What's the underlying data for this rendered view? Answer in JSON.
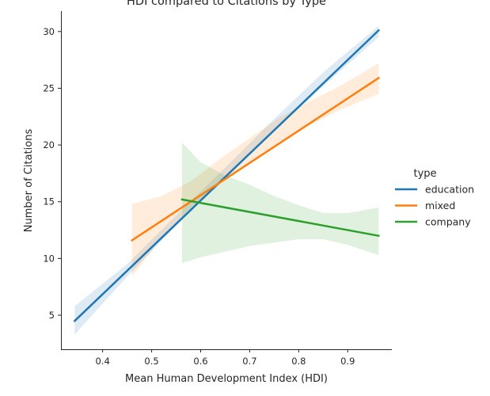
{
  "chart_data": {
    "type": "line",
    "title": "HDI compared to Citations by Type",
    "xlabel": "Mean Human Development Index (HDI)",
    "ylabel": "Number of Citations",
    "xlim": [
      0.315,
      0.99
    ],
    "ylim": [
      2.0,
      31.8
    ],
    "xticks": [
      0.4,
      0.5,
      0.6,
      0.7,
      0.8,
      0.9
    ],
    "yticks": [
      5,
      10,
      15,
      20,
      25,
      30
    ],
    "grid": false,
    "legend": {
      "title": "type",
      "position": "right"
    },
    "series": [
      {
        "name": "education",
        "color": "#1f77b4",
        "x": [
          0.343,
          0.963
        ],
        "y": [
          4.5,
          30.1
        ],
        "band": {
          "x": [
            0.343,
            0.45,
            0.55,
            0.65,
            0.75,
            0.85,
            0.963
          ],
          "lower": [
            3.3,
            8.4,
            12.9,
            17.1,
            21.2,
            25.2,
            29.5
          ],
          "upper": [
            5.8,
            9.5,
            13.8,
            18.0,
            22.3,
            26.4,
            30.5
          ]
        }
      },
      {
        "name": "mixed",
        "color": "#ff7f0e",
        "x": [
          0.46,
          0.963
        ],
        "y": [
          11.6,
          25.9
        ],
        "band": {
          "x": [
            0.46,
            0.52,
            0.58,
            0.64,
            0.7,
            0.76,
            0.82,
            0.88,
            0.963
          ],
          "lower": [
            8.4,
            11.8,
            14.5,
            16.7,
            18.4,
            20.1,
            21.7,
            23.0,
            24.5
          ],
          "upper": [
            14.8,
            15.5,
            16.8,
            18.8,
            20.6,
            22.4,
            23.8,
            25.1,
            27.2
          ]
        }
      },
      {
        "name": "company",
        "color": "#2ca02c",
        "x": [
          0.562,
          0.963
        ],
        "y": [
          15.2,
          12.0
        ],
        "band": {
          "x": [
            0.562,
            0.6,
            0.65,
            0.7,
            0.75,
            0.8,
            0.85,
            0.9,
            0.963
          ],
          "lower": [
            9.6,
            10.1,
            10.6,
            11.1,
            11.4,
            11.7,
            11.7,
            11.2,
            10.3
          ],
          "upper": [
            20.2,
            18.5,
            17.3,
            16.5,
            15.5,
            14.7,
            14.0,
            14.0,
            14.5
          ]
        }
      }
    ]
  }
}
